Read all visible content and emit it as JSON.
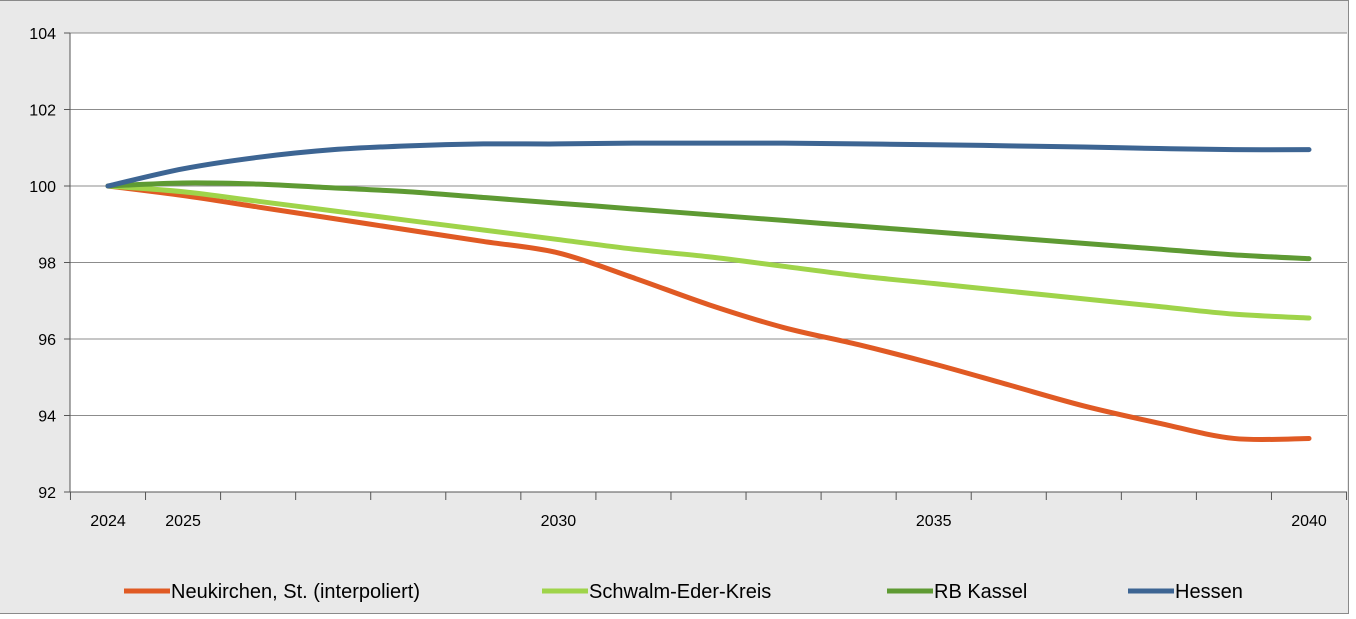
{
  "chart_data": {
    "type": "line",
    "title": "",
    "xlabel": "",
    "ylabel": "",
    "x": [
      2024,
      2025,
      2026,
      2027,
      2028,
      2029,
      2030,
      2031,
      2032,
      2033,
      2034,
      2035,
      2036,
      2037,
      2038,
      2039,
      2040
    ],
    "xticks_labeled": [
      "2024",
      "2025",
      "2030",
      "2035",
      "2040"
    ],
    "yticks": [
      "92",
      "94",
      "96",
      "98",
      "100",
      "102",
      "104"
    ],
    "ylim": [
      92,
      104
    ],
    "grid": "horizontal",
    "legend_position": "bottom",
    "series": [
      {
        "name": "Neukirchen, St. (interpoliert)",
        "color": "#e05a24",
        "values": [
          100.0,
          99.75,
          99.45,
          99.15,
          98.85,
          98.55,
          98.25,
          97.6,
          96.9,
          96.3,
          95.85,
          95.35,
          94.8,
          94.25,
          93.8,
          93.4,
          93.4
        ]
      },
      {
        "name": "Schwalm-Eder-Kreis",
        "color": "#9fd44a",
        "values": [
          100.0,
          99.85,
          99.6,
          99.35,
          99.1,
          98.85,
          98.6,
          98.35,
          98.15,
          97.9,
          97.65,
          97.45,
          97.25,
          97.05,
          96.85,
          96.65,
          96.55
        ]
      },
      {
        "name": "RB Kassel",
        "color": "#5e9a33",
        "values": [
          100.0,
          100.08,
          100.05,
          99.95,
          99.85,
          99.7,
          99.55,
          99.4,
          99.25,
          99.1,
          98.95,
          98.8,
          98.65,
          98.5,
          98.35,
          98.2,
          98.1
        ]
      },
      {
        "name": "Hessen",
        "color": "#3d6593",
        "values": [
          100.0,
          100.45,
          100.75,
          100.95,
          101.05,
          101.1,
          101.1,
          101.12,
          101.12,
          101.12,
          101.1,
          101.08,
          101.05,
          101.02,
          100.98,
          100.95,
          100.95
        ]
      }
    ]
  }
}
